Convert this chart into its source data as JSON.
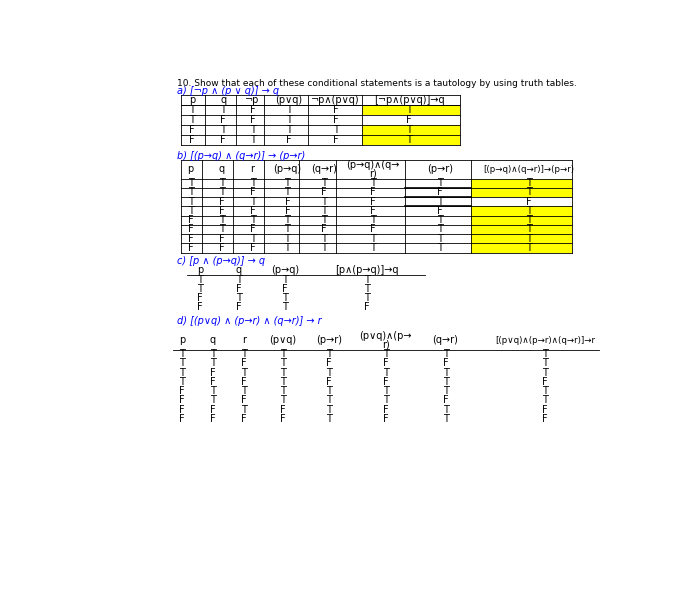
{
  "title": "10. Show that each of these conditional statements is a tautology by using truth tables.",
  "sec_a": "a) [¬p ∧ (p ∨ q)] → q",
  "sec_b": "b) [(p→q) ∧ (q→r)] → (p→r)",
  "sec_c": "c) [p ∧ (p→q)] → q",
  "sec_d": "d) [(p∨q) ∧ (p→r) ∧ (q→r)] → r",
  "yellow": "#FFFF00",
  "white": "#FFFFFF"
}
